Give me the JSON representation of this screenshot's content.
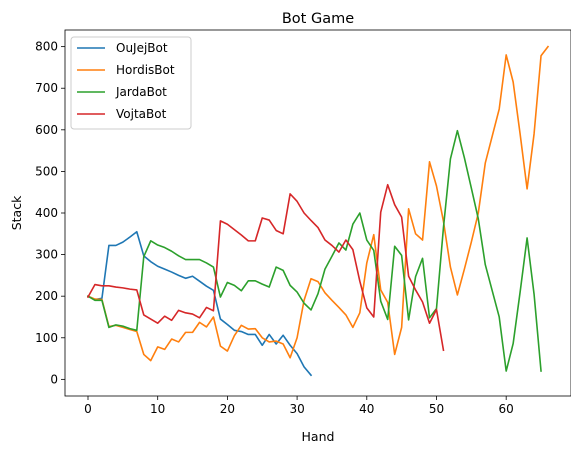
{
  "chart_data": {
    "type": "line",
    "title": "Bot Game",
    "xlabel": "Hand",
    "ylabel": "Stack",
    "xlim": [
      -3.3,
      69.3
    ],
    "ylim": [
      -40,
      840
    ],
    "xticks": [
      0,
      10,
      20,
      30,
      40,
      50,
      60
    ],
    "yticks": [
      0,
      100,
      200,
      300,
      400,
      500,
      600,
      700,
      800
    ],
    "grid": false,
    "legend_position": "top-left",
    "series": [
      {
        "name": "OuJejBot",
        "color": "#1f77b4",
        "values": [
          [
            0,
            200
          ],
          [
            1,
            192
          ],
          [
            2,
            195
          ],
          [
            3,
            322
          ],
          [
            4,
            322
          ],
          [
            5,
            330
          ],
          [
            6,
            342
          ],
          [
            7,
            355
          ],
          [
            8,
            297
          ],
          [
            9,
            283
          ],
          [
            10,
            272
          ],
          [
            11,
            265
          ],
          [
            12,
            258
          ],
          [
            13,
            250
          ],
          [
            14,
            243
          ],
          [
            15,
            248
          ],
          [
            16,
            236
          ],
          [
            17,
            224
          ],
          [
            18,
            214
          ],
          [
            19,
            145
          ],
          [
            20,
            132
          ],
          [
            21,
            118
          ],
          [
            22,
            115
          ],
          [
            23,
            108
          ],
          [
            24,
            108
          ],
          [
            25,
            82
          ],
          [
            26,
            108
          ],
          [
            27,
            85
          ],
          [
            28,
            106
          ],
          [
            29,
            82
          ],
          [
            30,
            62
          ],
          [
            31,
            30
          ],
          [
            32,
            10
          ]
        ]
      },
      {
        "name": "HordisBot",
        "color": "#ff7f0e",
        "values": [
          [
            0,
            200
          ],
          [
            1,
            193
          ],
          [
            2,
            192
          ],
          [
            3,
            127
          ],
          [
            4,
            130
          ],
          [
            5,
            125
          ],
          [
            6,
            120
          ],
          [
            7,
            115
          ],
          [
            8,
            60
          ],
          [
            9,
            45
          ],
          [
            10,
            78
          ],
          [
            11,
            72
          ],
          [
            12,
            97
          ],
          [
            13,
            90
          ],
          [
            14,
            113
          ],
          [
            15,
            113
          ],
          [
            16,
            137
          ],
          [
            17,
            126
          ],
          [
            18,
            150
          ],
          [
            19,
            80
          ],
          [
            20,
            68
          ],
          [
            21,
            105
          ],
          [
            22,
            130
          ],
          [
            23,
            121
          ],
          [
            24,
            122
          ],
          [
            25,
            100
          ],
          [
            26,
            90
          ],
          [
            27,
            92
          ],
          [
            28,
            85
          ],
          [
            29,
            52
          ],
          [
            30,
            100
          ],
          [
            31,
            190
          ],
          [
            32,
            242
          ],
          [
            33,
            235
          ],
          [
            34,
            208
          ],
          [
            35,
            190
          ],
          [
            36,
            173
          ],
          [
            37,
            155
          ],
          [
            38,
            125
          ],
          [
            39,
            160
          ],
          [
            40,
            280
          ],
          [
            41,
            348
          ],
          [
            42,
            215
          ],
          [
            43,
            185
          ],
          [
            44,
            60
          ],
          [
            45,
            125
          ],
          [
            46,
            410
          ],
          [
            47,
            350
          ],
          [
            48,
            335
          ],
          [
            49,
            523
          ],
          [
            50,
            465
          ],
          [
            51,
            380
          ],
          [
            52,
            270
          ],
          [
            53,
            203
          ],
          [
            54,
            265
          ],
          [
            55,
            330
          ],
          [
            56,
            400
          ],
          [
            57,
            520
          ],
          [
            58,
            585
          ],
          [
            59,
            650
          ],
          [
            60,
            780
          ],
          [
            61,
            715
          ],
          [
            62,
            590
          ],
          [
            63,
            458
          ],
          [
            64,
            590
          ],
          [
            65,
            778
          ],
          [
            66,
            800
          ]
        ]
      },
      {
        "name": "JardaBot",
        "color": "#2ca02c",
        "values": [
          [
            0,
            200
          ],
          [
            1,
            190
          ],
          [
            2,
            190
          ],
          [
            3,
            125
          ],
          [
            4,
            131
          ],
          [
            5,
            128
          ],
          [
            6,
            122
          ],
          [
            7,
            118
          ],
          [
            8,
            295
          ],
          [
            9,
            333
          ],
          [
            10,
            323
          ],
          [
            11,
            317
          ],
          [
            12,
            308
          ],
          [
            13,
            297
          ],
          [
            14,
            288
          ],
          [
            15,
            288
          ],
          [
            16,
            288
          ],
          [
            17,
            280
          ],
          [
            18,
            270
          ],
          [
            19,
            198
          ],
          [
            20,
            233
          ],
          [
            21,
            226
          ],
          [
            22,
            213
          ],
          [
            23,
            237
          ],
          [
            24,
            237
          ],
          [
            25,
            229
          ],
          [
            26,
            222
          ],
          [
            27,
            270
          ],
          [
            28,
            262
          ],
          [
            29,
            226
          ],
          [
            30,
            210
          ],
          [
            31,
            183
          ],
          [
            32,
            167
          ],
          [
            33,
            206
          ],
          [
            34,
            265
          ],
          [
            35,
            296
          ],
          [
            36,
            328
          ],
          [
            37,
            311
          ],
          [
            38,
            373
          ],
          [
            39,
            400
          ],
          [
            40,
            335
          ],
          [
            41,
            310
          ],
          [
            42,
            188
          ],
          [
            43,
            144
          ],
          [
            44,
            320
          ],
          [
            45,
            298
          ],
          [
            46,
            143
          ],
          [
            47,
            247
          ],
          [
            48,
            291
          ],
          [
            49,
            148
          ],
          [
            50,
            170
          ],
          [
            51,
            365
          ],
          [
            52,
            530
          ],
          [
            53,
            598
          ],
          [
            54,
            533
          ],
          [
            55,
            460
          ],
          [
            56,
            386
          ],
          [
            57,
            276
          ],
          [
            58,
            213
          ],
          [
            59,
            150
          ],
          [
            60,
            20
          ],
          [
            61,
            86
          ],
          [
            62,
            210
          ],
          [
            63,
            340
          ],
          [
            64,
            205
          ],
          [
            65,
            20
          ]
        ]
      },
      {
        "name": "VojtaBot",
        "color": "#d62728",
        "values": [
          [
            0,
            198
          ],
          [
            1,
            228
          ],
          [
            2,
            225
          ],
          [
            3,
            225
          ],
          [
            4,
            222
          ],
          [
            5,
            220
          ],
          [
            6,
            217
          ],
          [
            7,
            215
          ],
          [
            8,
            155
          ],
          [
            9,
            145
          ],
          [
            10,
            135
          ],
          [
            11,
            152
          ],
          [
            12,
            142
          ],
          [
            13,
            166
          ],
          [
            14,
            160
          ],
          [
            15,
            157
          ],
          [
            16,
            148
          ],
          [
            17,
            173
          ],
          [
            18,
            165
          ],
          [
            19,
            381
          ],
          [
            20,
            373
          ],
          [
            21,
            360
          ],
          [
            22,
            347
          ],
          [
            23,
            333
          ],
          [
            24,
            333
          ],
          [
            25,
            388
          ],
          [
            26,
            383
          ],
          [
            27,
            358
          ],
          [
            28,
            350
          ],
          [
            29,
            446
          ],
          [
            30,
            428
          ],
          [
            31,
            400
          ],
          [
            32,
            382
          ],
          [
            33,
            365
          ],
          [
            34,
            335
          ],
          [
            35,
            322
          ],
          [
            36,
            306
          ],
          [
            37,
            335
          ],
          [
            38,
            312
          ],
          [
            39,
            236
          ],
          [
            40,
            172
          ],
          [
            41,
            150
          ],
          [
            42,
            402
          ],
          [
            43,
            468
          ],
          [
            44,
            420
          ],
          [
            45,
            390
          ],
          [
            46,
            248
          ],
          [
            47,
            215
          ],
          [
            48,
            186
          ],
          [
            49,
            135
          ],
          [
            50,
            168
          ],
          [
            51,
            70
          ]
        ]
      }
    ]
  }
}
